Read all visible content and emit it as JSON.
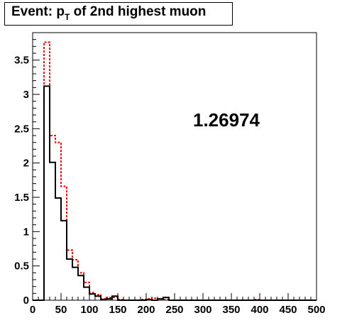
{
  "title": {
    "prefix": "Event: p",
    "subscript": "T",
    "suffix": " of 2nd highest muon"
  },
  "chart_data": {
    "type": "histogram",
    "xlim": [
      0,
      500
    ],
    "ylim": [
      0,
      3.9
    ],
    "x_ticks": [
      0,
      50,
      100,
      150,
      200,
      250,
      300,
      350,
      400,
      450,
      500
    ],
    "y_ticks": [
      0,
      0.5,
      1,
      1.5,
      2,
      2.5,
      3,
      3.5
    ],
    "y_tick_labels": [
      "0",
      "0.5",
      "1",
      "1.5",
      "2",
      "2.5",
      "3",
      "3.5"
    ],
    "bin_edges": [
      0,
      10,
      20,
      30,
      40,
      50,
      60,
      70,
      80,
      90,
      100,
      110,
      120,
      130,
      140,
      150,
      160,
      170,
      180,
      190,
      200,
      210,
      220,
      230,
      240,
      250,
      260,
      270,
      280,
      290,
      300,
      310,
      320,
      330,
      340,
      350,
      360,
      370,
      380,
      390,
      400,
      410,
      420,
      430,
      440,
      450,
      460,
      470,
      480,
      490,
      500
    ],
    "series": [
      {
        "color": "#000000",
        "dash": "solid",
        "values": [
          0,
          0,
          3.12,
          2.01,
          1.49,
          1.16,
          0.6,
          0.48,
          0.36,
          0.19,
          0.09,
          0.06,
          0.01,
          0.02,
          0.06,
          0,
          0,
          0,
          0,
          0,
          0.01,
          0,
          0.02,
          0.04,
          0,
          0,
          0,
          0,
          0,
          0,
          0,
          0,
          0,
          0,
          0,
          0,
          0,
          0,
          0,
          0,
          0,
          0,
          0,
          0,
          0,
          0,
          0,
          0,
          0,
          0
        ]
      },
      {
        "color": "#ff0000",
        "dash": "dotted",
        "values": [
          0,
          0,
          3.76,
          2.4,
          2.3,
          1.66,
          0.73,
          0.59,
          0.4,
          0.26,
          0.11,
          0.08,
          0.02,
          0.04,
          0.04,
          0.01,
          0,
          0,
          0,
          0.01,
          0.02,
          0.03,
          0.02,
          0.01,
          0,
          0,
          0,
          0,
          0,
          0,
          0,
          0,
          0,
          0,
          0,
          0,
          0,
          0,
          0,
          0.01,
          0,
          0,
          0,
          0,
          0,
          0,
          0,
          0,
          0,
          0
        ]
      }
    ],
    "annotation": "1.26974"
  }
}
